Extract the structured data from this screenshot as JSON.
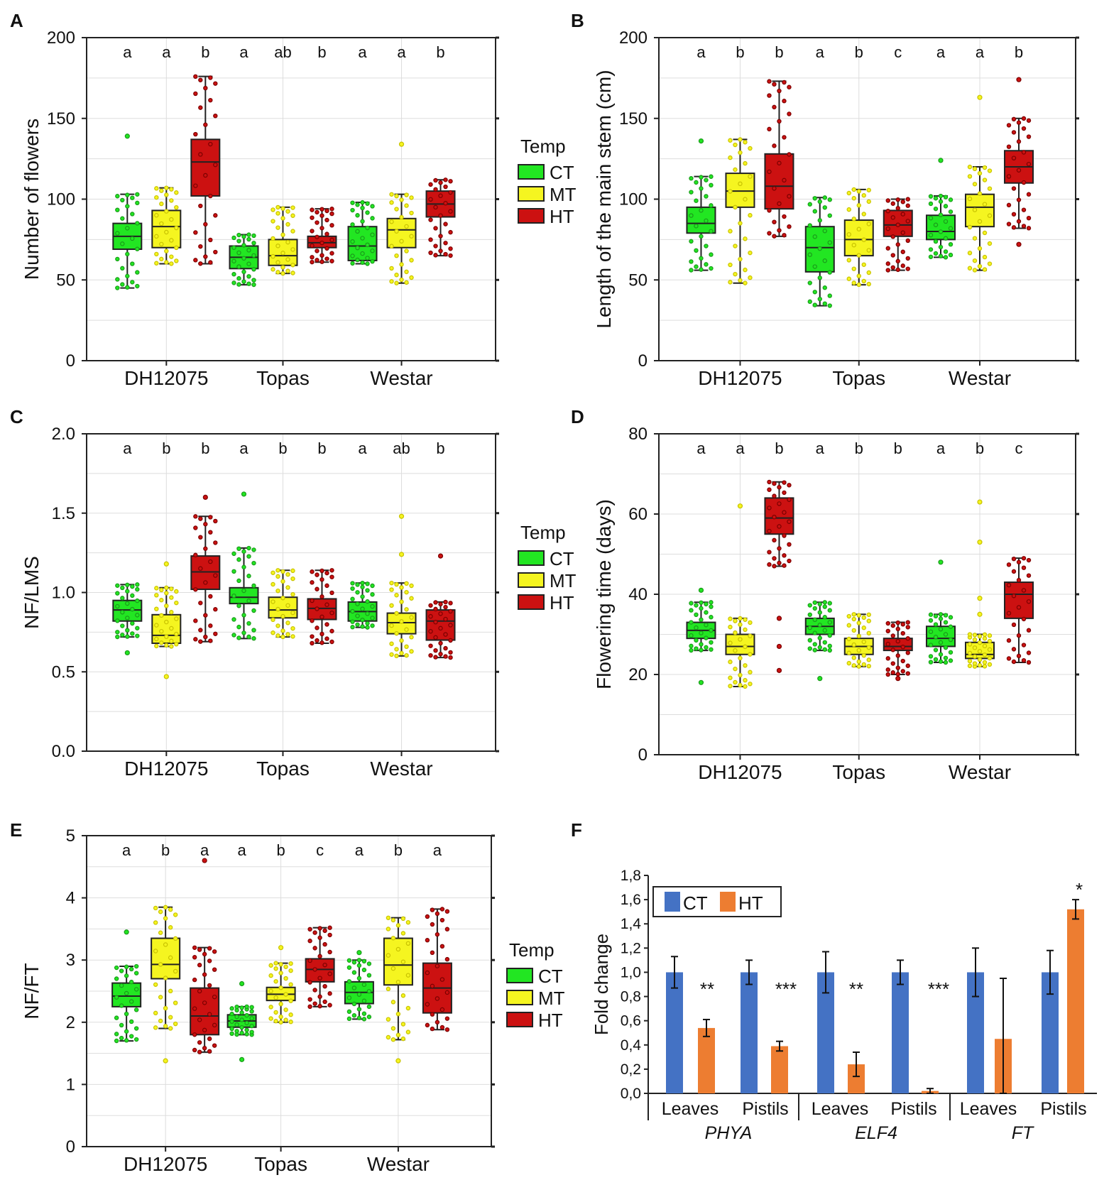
{
  "figure": {
    "legend_title": "Temp",
    "groups": [
      "CT",
      "MT",
      "HT"
    ],
    "group_colors": {
      "CT": "#22e622",
      "MT": "#f5f520",
      "HT": "#cc1111"
    },
    "group_dot_colors": {
      "CT": "#1a9a1a",
      "MT": "#c8c200",
      "HT": "#7a0000"
    }
  },
  "chart_data": [
    {
      "panel": "A",
      "type": "box",
      "ylabel": "Number of flowers",
      "ylim": [
        0,
        200
      ],
      "yticks": [
        "0",
        "50",
        "100",
        "150",
        "200"
      ],
      "ytick_values": [
        0,
        50,
        100,
        150,
        200
      ],
      "categories": [
        "DH12075",
        "Topas",
        "Westar"
      ],
      "letters": [
        "a",
        "a",
        "b",
        "a",
        "ab",
        "b",
        "a",
        "a",
        "b"
      ],
      "boxes": [
        {
          "cat": 0,
          "group": "CT",
          "whisker_low": 45,
          "q1": 69,
          "median": 77,
          "q3": 85,
          "whisker_high": 103,
          "outliers": [
            139
          ]
        },
        {
          "cat": 0,
          "group": "MT",
          "whisker_low": 60,
          "q1": 70,
          "median": 83,
          "q3": 93,
          "whisker_high": 107,
          "outliers": []
        },
        {
          "cat": 0,
          "group": "HT",
          "whisker_low": 60,
          "q1": 102,
          "median": 123,
          "q3": 137,
          "whisker_high": 176,
          "outliers": []
        },
        {
          "cat": 1,
          "group": "CT",
          "whisker_low": 47,
          "q1": 57,
          "median": 64,
          "q3": 71,
          "whisker_high": 78,
          "outliers": []
        },
        {
          "cat": 1,
          "group": "MT",
          "whisker_low": 54,
          "q1": 59,
          "median": 65,
          "q3": 75,
          "whisker_high": 95,
          "outliers": []
        },
        {
          "cat": 1,
          "group": "HT",
          "whisker_low": 61,
          "q1": 70,
          "median": 73,
          "q3": 77,
          "whisker_high": 94,
          "outliers": []
        },
        {
          "cat": 2,
          "group": "CT",
          "whisker_low": 60,
          "q1": 62,
          "median": 71,
          "q3": 83,
          "whisker_high": 98,
          "outliers": []
        },
        {
          "cat": 2,
          "group": "MT",
          "whisker_low": 48,
          "q1": 70,
          "median": 81,
          "q3": 88,
          "whisker_high": 103,
          "outliers": [
            134
          ]
        },
        {
          "cat": 2,
          "group": "HT",
          "whisker_low": 65,
          "q1": 89,
          "median": 97,
          "q3": 105,
          "whisker_high": 112,
          "outliers": []
        }
      ]
    },
    {
      "panel": "B",
      "type": "box",
      "ylabel": "Length of the main stem (cm)",
      "ylim": [
        0,
        200
      ],
      "yticks": [
        "0",
        "50",
        "100",
        "150",
        "200"
      ],
      "ytick_values": [
        0,
        50,
        100,
        150,
        200
      ],
      "categories": [
        "DH12075",
        "Topas",
        "Westar"
      ],
      "letters": [
        "a",
        "b",
        "b",
        "a",
        "b",
        "c",
        "a",
        "a",
        "b"
      ],
      "boxes": [
        {
          "cat": 0,
          "group": "CT",
          "whisker_low": 56,
          "q1": 79,
          "median": 85,
          "q3": 95,
          "whisker_high": 114,
          "outliers": [
            136
          ]
        },
        {
          "cat": 0,
          "group": "MT",
          "whisker_low": 48,
          "q1": 95,
          "median": 105,
          "q3": 116,
          "whisker_high": 137,
          "outliers": []
        },
        {
          "cat": 0,
          "group": "HT",
          "whisker_low": 77,
          "q1": 94,
          "median": 108,
          "q3": 128,
          "whisker_high": 173,
          "outliers": []
        },
        {
          "cat": 1,
          "group": "CT",
          "whisker_low": 34,
          "q1": 55,
          "median": 70,
          "q3": 83,
          "whisker_high": 101,
          "outliers": []
        },
        {
          "cat": 1,
          "group": "MT",
          "whisker_low": 47,
          "q1": 65,
          "median": 75,
          "q3": 87,
          "whisker_high": 106,
          "outliers": []
        },
        {
          "cat": 1,
          "group": "HT",
          "whisker_low": 56,
          "q1": 77,
          "median": 84,
          "q3": 93,
          "whisker_high": 100,
          "outliers": []
        },
        {
          "cat": 2,
          "group": "CT",
          "whisker_low": 64,
          "q1": 75,
          "median": 80,
          "q3": 90,
          "whisker_high": 102,
          "outliers": [
            124
          ]
        },
        {
          "cat": 2,
          "group": "MT",
          "whisker_low": 56,
          "q1": 83,
          "median": 95,
          "q3": 103,
          "whisker_high": 120,
          "outliers": [
            163
          ]
        },
        {
          "cat": 2,
          "group": "HT",
          "whisker_low": 82,
          "q1": 110,
          "median": 120,
          "q3": 130,
          "whisker_high": 150,
          "outliers": [
            72,
            174
          ]
        }
      ]
    },
    {
      "panel": "C",
      "type": "box",
      "ylabel": "NF/LMS",
      "ylim": [
        0,
        2
      ],
      "yticks": [
        "0.0",
        "0.5",
        "1.0",
        "1.5",
        "2.0"
      ],
      "ytick_values": [
        0,
        0.5,
        1.0,
        1.5,
        2.0
      ],
      "categories": [
        "DH12075",
        "Topas",
        "Westar"
      ],
      "letters": [
        "a",
        "b",
        "b",
        "a",
        "b",
        "b",
        "a",
        "ab",
        "b"
      ],
      "boxes": [
        {
          "cat": 0,
          "group": "CT",
          "whisker_low": 0.72,
          "q1": 0.82,
          "median": 0.89,
          "q3": 0.95,
          "whisker_high": 1.05,
          "outliers": [
            0.62
          ]
        },
        {
          "cat": 0,
          "group": "MT",
          "whisker_low": 0.66,
          "q1": 0.68,
          "median": 0.73,
          "q3": 0.86,
          "whisker_high": 1.03,
          "outliers": [
            0.47,
            1.18
          ]
        },
        {
          "cat": 0,
          "group": "HT",
          "whisker_low": 0.69,
          "q1": 1.02,
          "median": 1.13,
          "q3": 1.23,
          "whisker_high": 1.48,
          "outliers": [
            1.6
          ]
        },
        {
          "cat": 1,
          "group": "CT",
          "whisker_low": 0.71,
          "q1": 0.93,
          "median": 0.97,
          "q3": 1.03,
          "whisker_high": 1.28,
          "outliers": [
            1.62
          ]
        },
        {
          "cat": 1,
          "group": "MT",
          "whisker_low": 0.72,
          "q1": 0.84,
          "median": 0.89,
          "q3": 0.97,
          "whisker_high": 1.14,
          "outliers": []
        },
        {
          "cat": 1,
          "group": "HT",
          "whisker_low": 0.68,
          "q1": 0.83,
          "median": 0.9,
          "q3": 0.96,
          "whisker_high": 1.14,
          "outliers": []
        },
        {
          "cat": 2,
          "group": "CT",
          "whisker_low": 0.78,
          "q1": 0.82,
          "median": 0.88,
          "q3": 0.94,
          "whisker_high": 1.06,
          "outliers": []
        },
        {
          "cat": 2,
          "group": "MT",
          "whisker_low": 0.6,
          "q1": 0.74,
          "median": 0.81,
          "q3": 0.87,
          "whisker_high": 1.06,
          "outliers": [
            1.24,
            1.48
          ]
        },
        {
          "cat": 2,
          "group": "HT",
          "whisker_low": 0.59,
          "q1": 0.7,
          "median": 0.82,
          "q3": 0.89,
          "whisker_high": 0.94,
          "outliers": [
            1.23
          ]
        }
      ]
    },
    {
      "panel": "D",
      "type": "box",
      "ylabel": "Flowering time (days)",
      "ylim": [
        0,
        80
      ],
      "yticks": [
        "0",
        "20",
        "40",
        "60",
        "80"
      ],
      "ytick_values": [
        0,
        20,
        40,
        60,
        80
      ],
      "categories": [
        "DH12075",
        "Topas",
        "Westar"
      ],
      "letters": [
        "a",
        "a",
        "b",
        "a",
        "b",
        "b",
        "a",
        "b",
        "c"
      ],
      "boxes": [
        {
          "cat": 0,
          "group": "CT",
          "whisker_low": 26,
          "q1": 29,
          "median": 31,
          "q3": 33,
          "whisker_high": 38,
          "outliers": [
            18,
            41
          ]
        },
        {
          "cat": 0,
          "group": "MT",
          "whisker_low": 17,
          "q1": 25,
          "median": 27,
          "q3": 30,
          "whisker_high": 34,
          "outliers": [
            62
          ]
        },
        {
          "cat": 0,
          "group": "HT",
          "whisker_low": 47,
          "q1": 55,
          "median": 59,
          "q3": 64,
          "whisker_high": 68,
          "outliers": [
            21,
            27,
            34
          ]
        },
        {
          "cat": 1,
          "group": "CT",
          "whisker_low": 26,
          "q1": 30,
          "median": 32,
          "q3": 34,
          "whisker_high": 38,
          "outliers": [
            19
          ]
        },
        {
          "cat": 1,
          "group": "MT",
          "whisker_low": 22,
          "q1": 25,
          "median": 27,
          "q3": 29,
          "whisker_high": 35,
          "outliers": []
        },
        {
          "cat": 1,
          "group": "HT",
          "whisker_low": 20,
          "q1": 26,
          "median": 27,
          "q3": 29,
          "whisker_high": 33,
          "outliers": [
            19
          ]
        },
        {
          "cat": 2,
          "group": "CT",
          "whisker_low": 23,
          "q1": 27,
          "median": 29,
          "q3": 32,
          "whisker_high": 35,
          "outliers": [
            48
          ]
        },
        {
          "cat": 2,
          "group": "MT",
          "whisker_low": 22,
          "q1": 24,
          "median": 25,
          "q3": 28,
          "whisker_high": 30,
          "outliers": [
            35,
            39,
            53,
            63
          ]
        },
        {
          "cat": 2,
          "group": "HT",
          "whisker_low": 23,
          "q1": 34,
          "median": 40,
          "q3": 43,
          "whisker_high": 49,
          "outliers": []
        }
      ]
    },
    {
      "panel": "E",
      "type": "box",
      "ylabel": "NF/FT",
      "ylim": [
        0,
        5
      ],
      "yticks": [
        "0",
        "1",
        "2",
        "3",
        "4",
        "5"
      ],
      "ytick_values": [
        0,
        1,
        2,
        3,
        4,
        5
      ],
      "categories": [
        "DH12075",
        "Topas",
        "Westar"
      ],
      "letters": [
        "a",
        "b",
        "a",
        "a",
        "b",
        "c",
        "a",
        "b",
        "a"
      ],
      "boxes": [
        {
          "cat": 0,
          "group": "CT",
          "whisker_low": 1.7,
          "q1": 2.25,
          "median": 2.42,
          "q3": 2.63,
          "whisker_high": 2.9,
          "outliers": [
            3.45
          ]
        },
        {
          "cat": 0,
          "group": "MT",
          "whisker_low": 1.9,
          "q1": 2.7,
          "median": 2.93,
          "q3": 3.35,
          "whisker_high": 3.85,
          "outliers": [
            1.38
          ]
        },
        {
          "cat": 0,
          "group": "HT",
          "whisker_low": 1.52,
          "q1": 1.8,
          "median": 2.1,
          "q3": 2.55,
          "whisker_high": 3.2,
          "outliers": [
            4.6
          ]
        },
        {
          "cat": 1,
          "group": "CT",
          "whisker_low": 1.8,
          "q1": 1.92,
          "median": 2.02,
          "q3": 2.12,
          "whisker_high": 2.25,
          "outliers": [
            1.4,
            2.62
          ]
        },
        {
          "cat": 1,
          "group": "MT",
          "whisker_low": 2.0,
          "q1": 2.35,
          "median": 2.45,
          "q3": 2.56,
          "whisker_high": 2.95,
          "outliers": [
            3.2
          ]
        },
        {
          "cat": 1,
          "group": "HT",
          "whisker_low": 2.25,
          "q1": 2.65,
          "median": 2.85,
          "q3": 3.02,
          "whisker_high": 3.52,
          "outliers": []
        },
        {
          "cat": 2,
          "group": "CT",
          "whisker_low": 2.05,
          "q1": 2.3,
          "median": 2.48,
          "q3": 2.65,
          "whisker_high": 3.0,
          "outliers": [
            3.12
          ]
        },
        {
          "cat": 2,
          "group": "MT",
          "whisker_low": 1.72,
          "q1": 2.6,
          "median": 2.92,
          "q3": 3.35,
          "whisker_high": 3.68,
          "outliers": [
            1.38
          ]
        },
        {
          "cat": 2,
          "group": "HT",
          "whisker_low": 1.88,
          "q1": 2.15,
          "median": 2.55,
          "q3": 2.95,
          "whisker_high": 3.82,
          "outliers": []
        }
      ]
    },
    {
      "panel": "F",
      "type": "bar",
      "ylabel": "Fold change",
      "ylim": [
        0,
        1.8
      ],
      "yticks": [
        "0,0",
        "0,2",
        "0,4",
        "0,6",
        "0,8",
        "1,0",
        "1,2",
        "1,4",
        "1,6",
        "1,8"
      ],
      "ytick_values": [
        0,
        0.2,
        0.4,
        0.6,
        0.8,
        1.0,
        1.2,
        1.4,
        1.6,
        1.8
      ],
      "tissues": [
        "Leaves",
        "Pistils",
        "Leaves",
        "Pistils",
        "Leaves",
        "Pistils"
      ],
      "genes": [
        "PHYA",
        "ELF4",
        "FT"
      ],
      "legend": [
        "CT",
        "HT"
      ],
      "series": [
        {
          "name": "CT",
          "color": "#4472c4",
          "values": [
            1.0,
            1.0,
            1.0,
            1.0,
            1.0,
            1.0
          ],
          "errors": [
            0.13,
            0.1,
            0.17,
            0.1,
            0.2,
            0.18
          ]
        },
        {
          "name": "HT",
          "color": "#ed7d31",
          "values": [
            0.54,
            0.39,
            0.24,
            0.02,
            0.45,
            1.52
          ],
          "errors": [
            0.07,
            0.04,
            0.1,
            0.02,
            0.5,
            0.08
          ]
        }
      ],
      "significance": [
        "**",
        "***",
        "**",
        "***",
        "",
        "*"
      ]
    }
  ]
}
